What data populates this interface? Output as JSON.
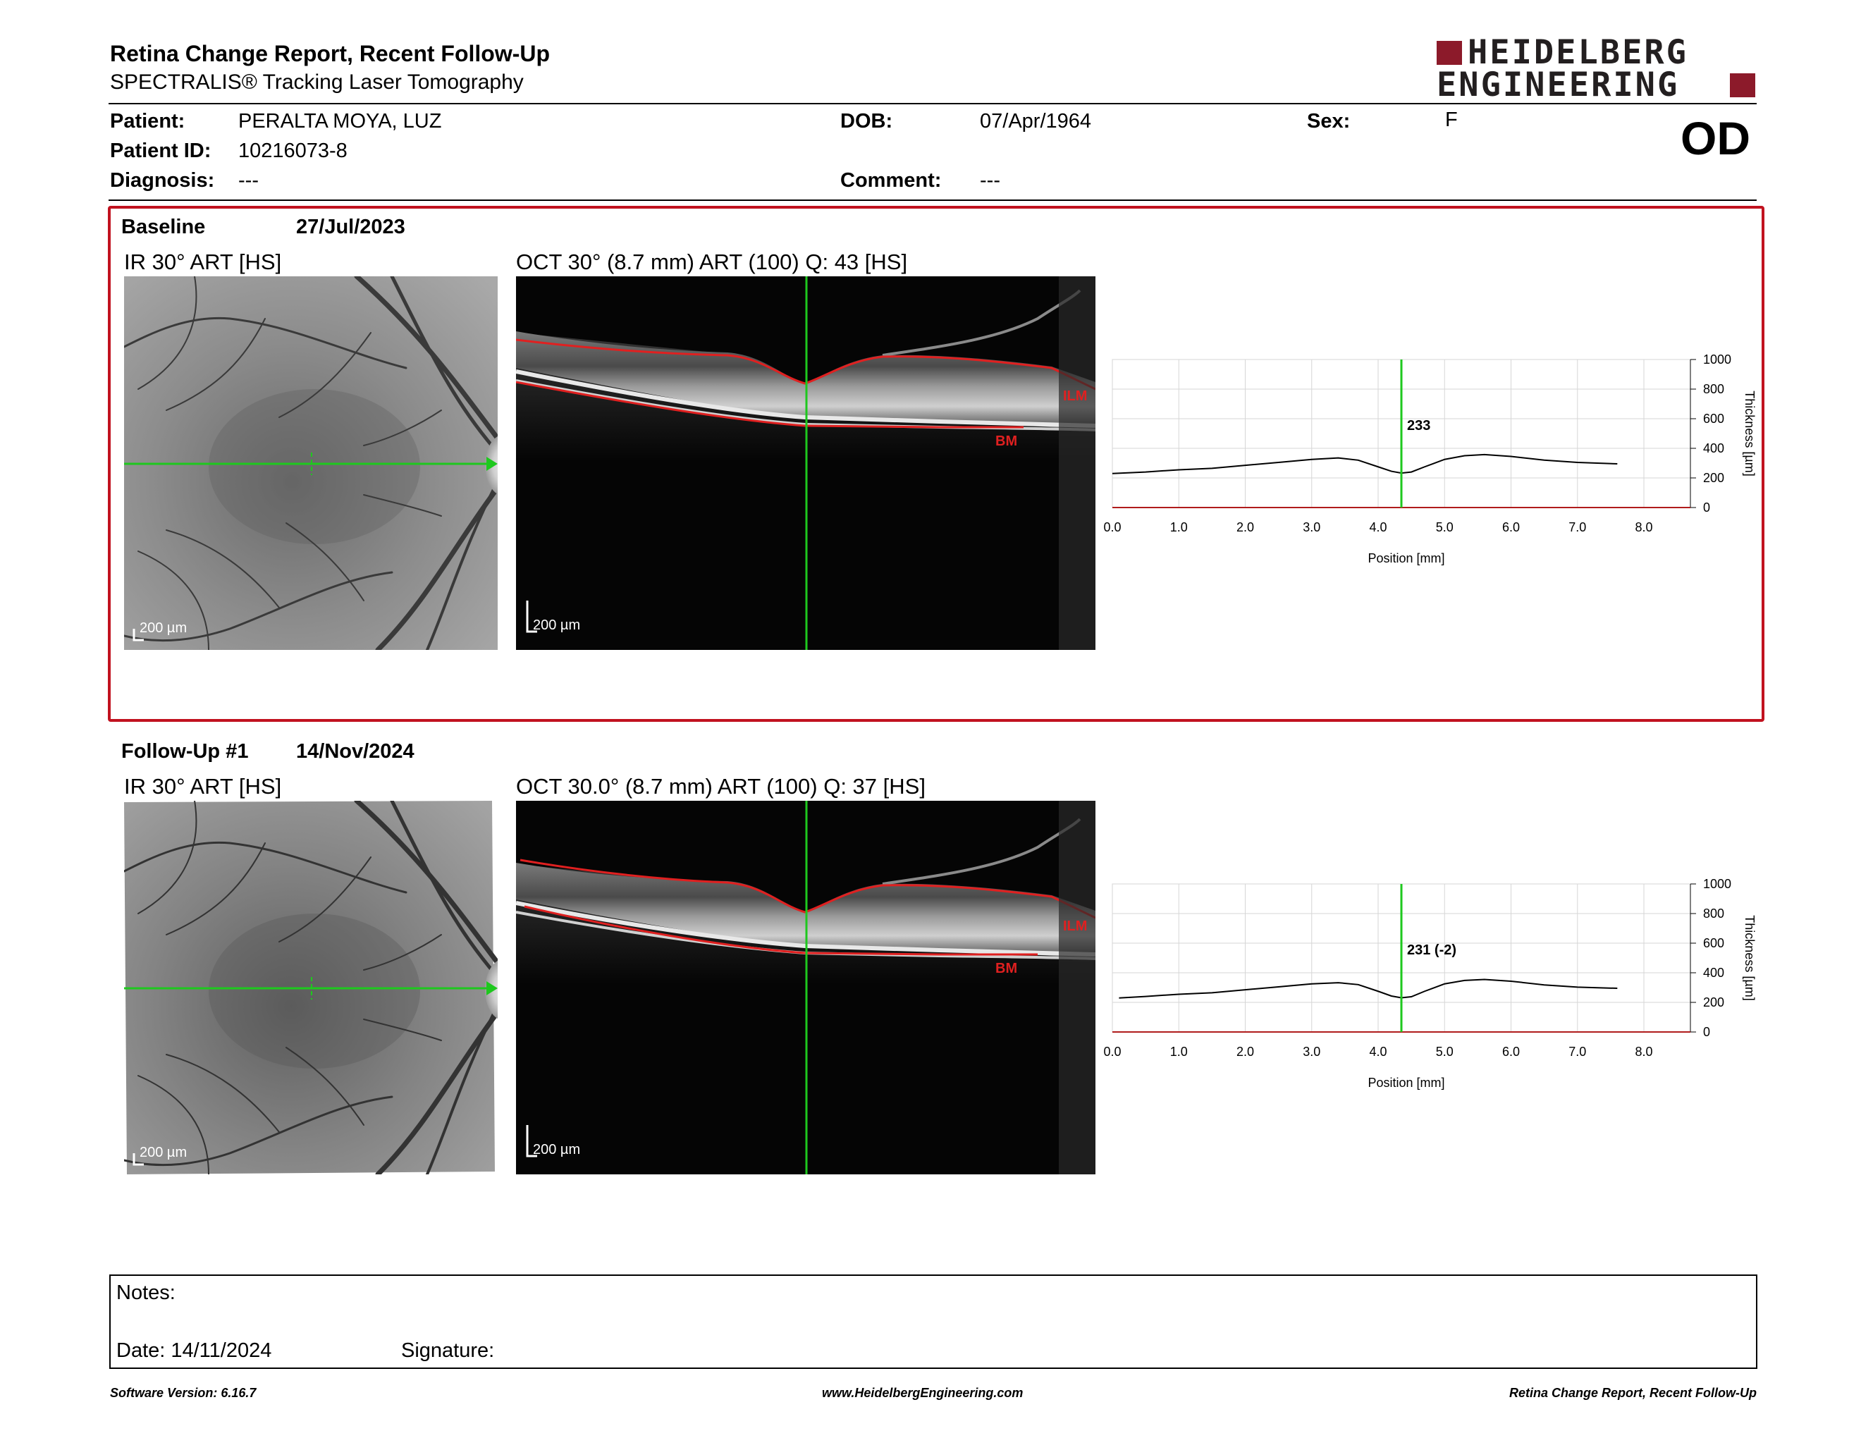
{
  "header": {
    "title": "Retina Change Report, Recent Follow-Up",
    "subtitle": "SPECTRALIS® Tracking Laser Tomography",
    "logo_line1": "HEIDELBERG",
    "logo_line2": "ENGINEERING"
  },
  "patient": {
    "patient_label": "Patient:",
    "patient_value": "PERALTA MOYA, LUZ",
    "id_label": "Patient ID:",
    "id_value": "10216073-8",
    "diagnosis_label": "Diagnosis:",
    "diagnosis_value": "---",
    "dob_label": "DOB:",
    "dob_value": "07/Apr/1964",
    "comment_label": "Comment:",
    "comment_value": "---",
    "sex_label": "Sex:",
    "sex_value": "F",
    "eye": "OD"
  },
  "baseline": {
    "label": "Baseline",
    "date": "27/Jul/2023",
    "ir_caption": "IR 30° ART [HS]",
    "oct_caption": "OCT 30° (8.7 mm) ART (100) Q: 43 [HS]",
    "scale_ir": "200 µm",
    "scale_oct": "200 µm",
    "ilm": "ILM",
    "bm": "BM"
  },
  "followup": {
    "label": "Follow-Up #1",
    "date": "14/Nov/2024",
    "ir_caption": "IR 30° ART [HS]",
    "oct_caption": "OCT 30.0° (8.7 mm) ART (100) Q: 37 [HS]",
    "scale_ir": "200 µm",
    "scale_oct": "200 µm",
    "ilm": "ILM",
    "bm": "BM"
  },
  "chart_data": [
    {
      "type": "line",
      "xlabel": "Position [mm]",
      "ylabel": "Thickness [µm]",
      "xlim": [
        0,
        8.7
      ],
      "ylim": [
        0,
        1000
      ],
      "x_ticks": [
        "0.0",
        "1.0",
        "2.0",
        "3.0",
        "4.0",
        "5.0",
        "6.0",
        "7.0",
        "8.0"
      ],
      "y_ticks": [
        "0",
        "200",
        "400",
        "600",
        "800",
        "1000"
      ],
      "cursor_x": 4.35,
      "cursor_label": "233",
      "x": [
        0.0,
        0.5,
        1.0,
        1.5,
        2.0,
        2.5,
        3.0,
        3.4,
        3.7,
        4.0,
        4.2,
        4.35,
        4.5,
        4.7,
        5.0,
        5.3,
        5.6,
        6.0,
        6.5,
        7.0,
        7.6
      ],
      "y": [
        230,
        240,
        255,
        265,
        285,
        305,
        325,
        335,
        320,
        275,
        245,
        233,
        240,
        275,
        325,
        350,
        358,
        345,
        320,
        305,
        295
      ]
    },
    {
      "type": "line",
      "xlabel": "Position [mm]",
      "ylabel": "Thickness [µm]",
      "xlim": [
        0,
        8.7
      ],
      "ylim": [
        0,
        1000
      ],
      "x_ticks": [
        "0.0",
        "1.0",
        "2.0",
        "3.0",
        "4.0",
        "5.0",
        "6.0",
        "7.0",
        "8.0"
      ],
      "y_ticks": [
        "0",
        "200",
        "400",
        "600",
        "800",
        "1000"
      ],
      "cursor_x": 4.35,
      "cursor_label": "231 (-2)",
      "x": [
        0.1,
        0.5,
        1.0,
        1.5,
        2.0,
        2.5,
        3.0,
        3.4,
        3.7,
        4.0,
        4.2,
        4.35,
        4.5,
        4.7,
        5.0,
        5.3,
        5.6,
        6.0,
        6.5,
        7.0,
        7.6
      ],
      "y": [
        230,
        240,
        255,
        265,
        285,
        305,
        325,
        333,
        320,
        275,
        243,
        231,
        238,
        275,
        325,
        348,
        355,
        343,
        318,
        303,
        295
      ]
    }
  ],
  "notes": {
    "notes_label": "Notes:",
    "date_label": "Date: 14/11/2024",
    "signature_label": "Signature:"
  },
  "footer": {
    "software": "Software Version: 6.16.7",
    "website": "www.HeidelbergEngineering.com",
    "report": "Retina Change Report, Recent Follow-Up"
  },
  "colors": {
    "frame_red": "#c1121f",
    "layer_red": "#e02020",
    "cursor_green": "#1ec81e",
    "logo_red": "#8c1a2a"
  }
}
